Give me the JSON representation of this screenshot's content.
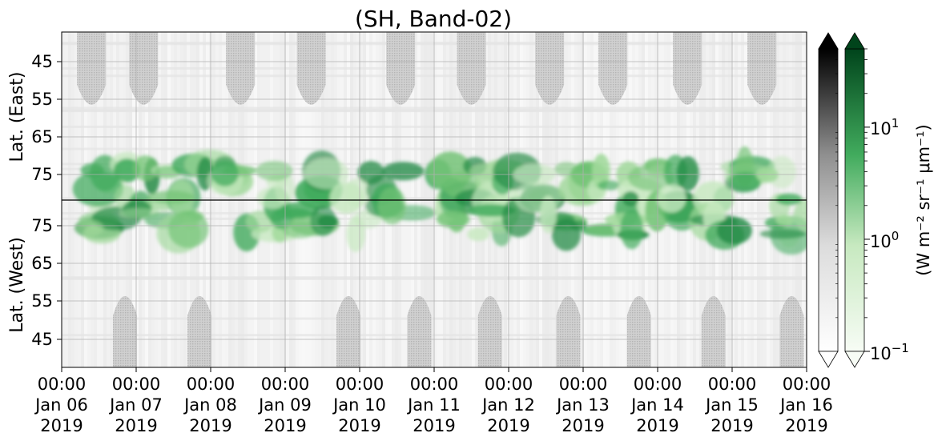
{
  "chart_data": {
    "type": "heatmap",
    "title": "(SH, Band-02)",
    "upper_panel": {
      "ylabel": "Lat. (East)",
      "yticks": [
        "45",
        "55",
        "65",
        "75"
      ],
      "ytick_values": [
        45,
        55,
        65,
        75
      ],
      "ylim": [
        39,
        84
      ]
    },
    "lower_panel": {
      "ylabel": "Lat. (West)",
      "yticks": [
        "75",
        "65",
        "55",
        "45"
      ],
      "ytick_values": [
        75,
        65,
        55,
        45
      ],
      "ylim": [
        84,
        39
      ]
    },
    "x_axis": {
      "range": [
        "2019-01-06 00:00",
        "2019-01-16 00:00"
      ],
      "tick_labels": [
        [
          "00:00",
          "Jan 06",
          "2019"
        ],
        [
          "00:00",
          "Jan 07",
          "2019"
        ],
        [
          "00:00",
          "Jan 08",
          "2019"
        ],
        [
          "00:00",
          "Jan 09",
          "2019"
        ],
        [
          "00:00",
          "Jan 10",
          "2019"
        ],
        [
          "00:00",
          "Jan 11",
          "2019"
        ],
        [
          "00:00",
          "Jan 12",
          "2019"
        ],
        [
          "00:00",
          "Jan 13",
          "2019"
        ],
        [
          "00:00",
          "Jan 14",
          "2019"
        ],
        [
          "00:00",
          "Jan 15",
          "2019"
        ],
        [
          "00:00",
          "Jan 16",
          "2019"
        ]
      ]
    },
    "grid": true,
    "colorbars": [
      {
        "colormap": "Greys",
        "scale": "log",
        "extend": "both",
        "range": [
          0.1,
          50
        ]
      },
      {
        "colormap": "Greens",
        "scale": "log",
        "extend": "both",
        "range": [
          0.1,
          50
        ],
        "tick_labels": [
          "10",
          "10",
          "10"
        ],
        "tick_exponents": [
          "1",
          "0",
          "−1"
        ],
        "tick_values": [
          10,
          1,
          0.1
        ]
      }
    ],
    "colorbar_label": "(W m⁻² sr⁻¹ μm⁻¹)",
    "no_data_fill": "#c8c8c8",
    "green_activity_days": [
      0.45,
      0.55,
      1.05,
      1.2,
      1.5,
      1.75,
      2.1,
      2.4,
      2.75,
      3.0,
      3.35,
      3.7,
      4.1,
      4.5,
      5.2,
      5.45,
      5.7,
      5.9,
      6.3,
      6.6,
      6.9,
      7.2,
      7.5,
      7.75,
      8.1,
      8.4,
      8.7,
      9.0,
      9.3,
      9.6,
      9.85
    ]
  }
}
